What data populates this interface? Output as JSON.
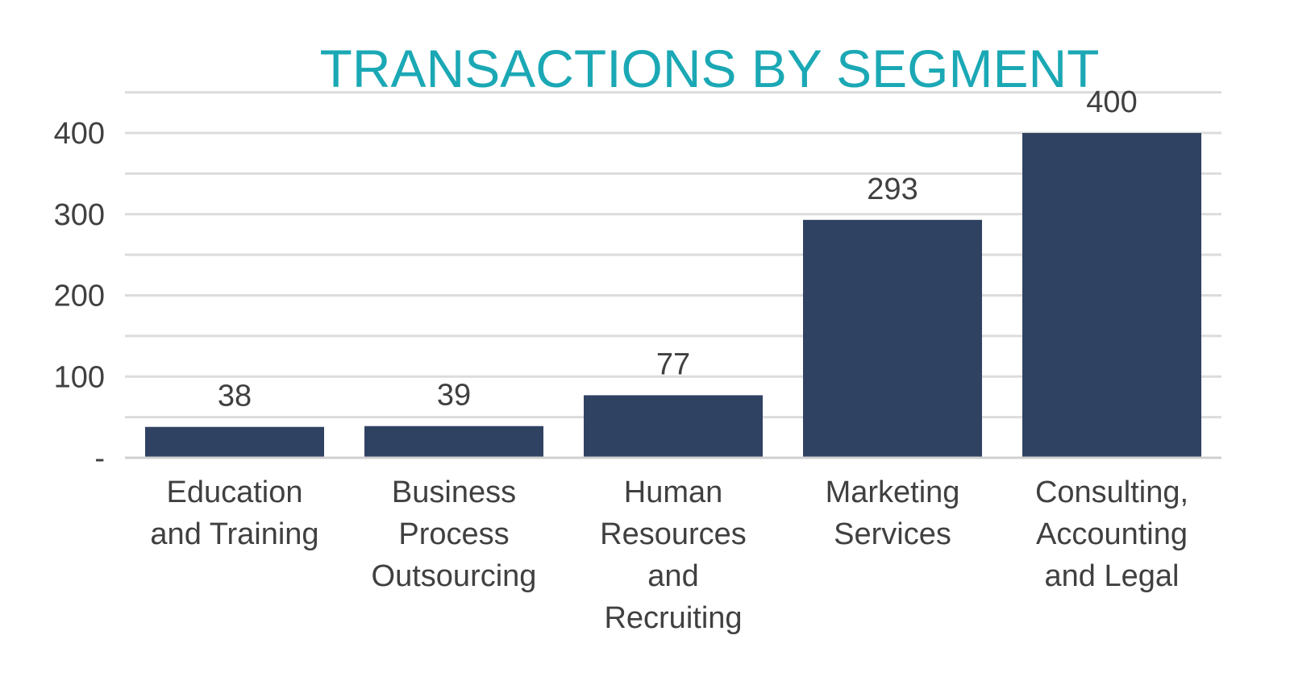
{
  "chart_data": {
    "type": "bar",
    "title": "TRANSACTIONS BY SEGMENT",
    "xlabel": "",
    "ylabel": "",
    "categories": [
      [
        "Education",
        "and Training"
      ],
      [
        "Business",
        "Process",
        "Outsourcing"
      ],
      [
        "Human",
        "Resources",
        "and",
        "Recruiting"
      ],
      [
        "Marketing",
        "Services"
      ],
      [
        "Consulting,",
        "Accounting",
        "and Legal"
      ]
    ],
    "values": [
      38,
      39,
      77,
      293,
      400
    ],
    "data_labels": [
      "38",
      "39",
      "77",
      "293",
      "400"
    ],
    "ylim": [
      0,
      450
    ],
    "y_ticks": [
      {
        "value": 0,
        "label": "-"
      },
      {
        "value": 100,
        "label": "100"
      },
      {
        "value": 200,
        "label": "200"
      },
      {
        "value": 300,
        "label": "300"
      },
      {
        "value": 400,
        "label": "400"
      }
    ],
    "gridline_step": 50,
    "grid": true,
    "legend": "none",
    "bar_color": "#304262",
    "title_color": "#1ba8b5"
  }
}
